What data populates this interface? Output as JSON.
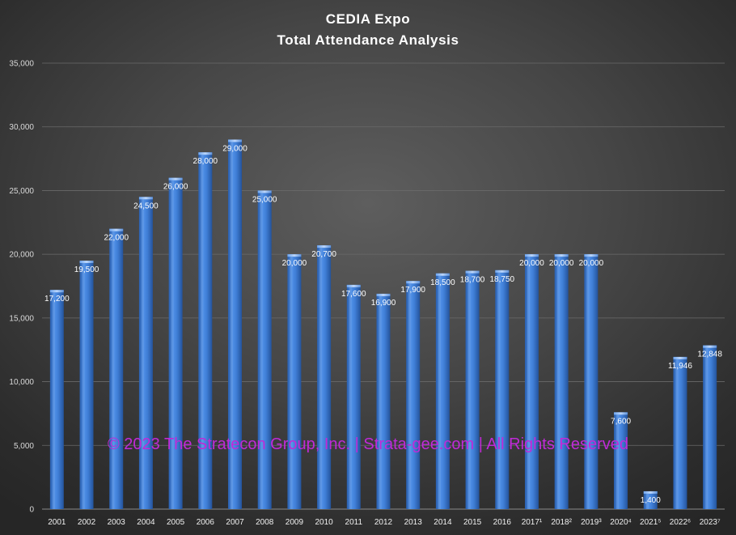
{
  "chart_data": {
    "type": "bar",
    "title": "CEDIA  Expo",
    "subtitle": "Total  Attendance  Analysis",
    "categories": [
      "2001",
      "2002",
      "2003",
      "2004",
      "2005",
      "2006",
      "2007",
      "2008",
      "2009",
      "2010",
      "2011",
      "2012",
      "2013",
      "2014",
      "2015",
      "2016",
      "2017¹",
      "2018²",
      "2019³",
      "2020⁴",
      "2021⁵",
      "2022⁶",
      "2023⁷"
    ],
    "values": [
      17200,
      19500,
      22000,
      24500,
      26000,
      28000,
      29000,
      25000,
      20000,
      20700,
      17600,
      16900,
      17900,
      18500,
      18700,
      18750,
      20000,
      20000,
      20000,
      7600,
      1400,
      11946,
      12848
    ],
    "data_labels": [
      "17,200",
      "19,500",
      "22,000",
      "24,500",
      "26,000",
      "28,000",
      "29,000",
      "25,000",
      "20,000",
      "20,700",
      "17,600",
      "16,900",
      "17,900",
      "18,500",
      "18,700",
      "18,750",
      "20,000",
      "20,000",
      "20,000",
      "7,600",
      "1,400",
      "11,946",
      "12,848"
    ],
    "yticks": [
      "0",
      "5,000",
      "10,000",
      "15,000",
      "20,000",
      "25,000",
      "30,000",
      "35,000"
    ],
    "ylim": [
      0,
      35000
    ],
    "grid": true,
    "legend": "none",
    "xlabel": "",
    "ylabel": "",
    "bar_color": "#3f7ed6",
    "watermark": "© 2023 The Stratecon Group, Inc. | Strata-gee.com | All Rights Reserved",
    "watermark_color": "#c02ad8"
  }
}
